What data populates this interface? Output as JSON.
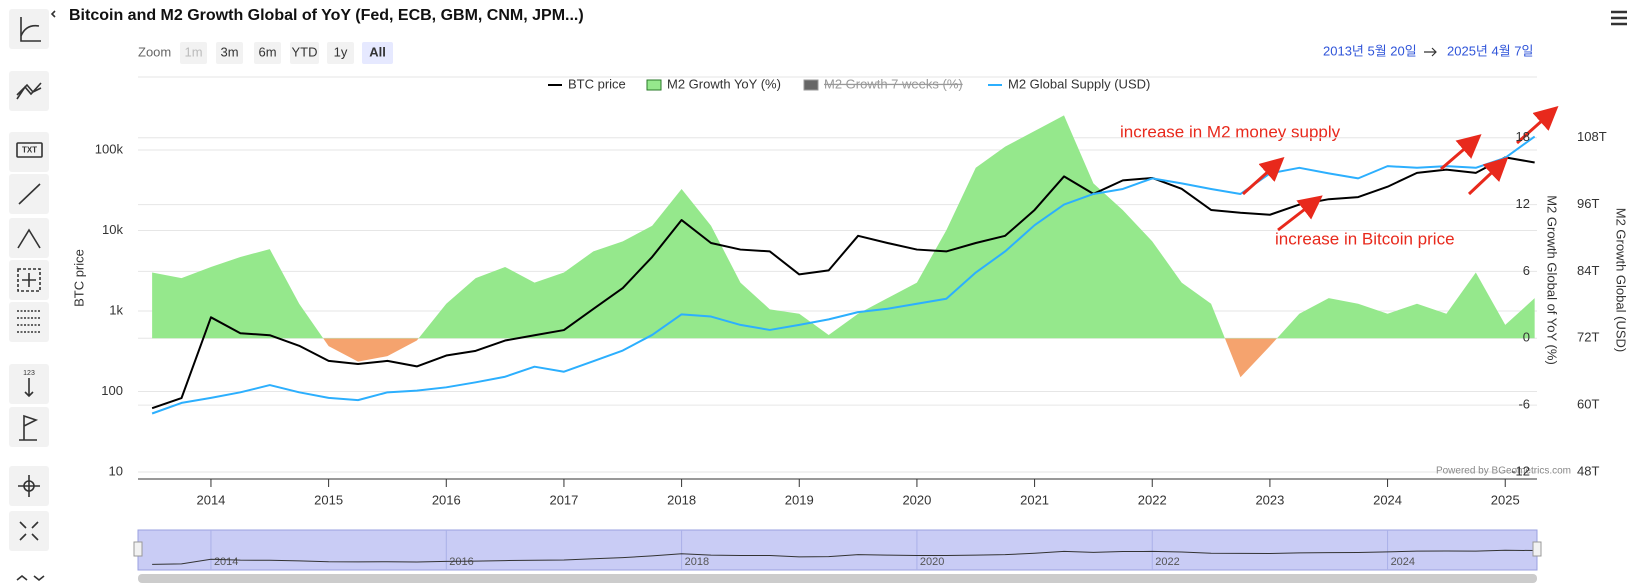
{
  "toolbar": [
    "TXT",
    "123"
  ],
  "zoom": {
    "label": "Zoom",
    "buttons": [
      "1m",
      "3m",
      "6m",
      "YTD",
      "1y",
      "All"
    ],
    "selected_index": 5,
    "disabled_index": 0
  },
  "date_range": {
    "from": "2013년 5월 20일",
    "to": "2025년 4월 7일"
  },
  "chart_data": {
    "type": "line",
    "title": "Bitcoin and M2 Growth Global of YoY (Fed, ECB, GBM, CNM, JPM...)",
    "x": [
      2013.5,
      2013.75,
      2014.0,
      2014.25,
      2014.5,
      2014.75,
      2015.0,
      2015.25,
      2015.5,
      2015.75,
      2016.0,
      2016.25,
      2016.5,
      2016.75,
      2017.0,
      2017.25,
      2017.5,
      2017.75,
      2018.0,
      2018.25,
      2018.5,
      2018.75,
      2019.0,
      2019.25,
      2019.5,
      2019.75,
      2020.0,
      2020.25,
      2020.5,
      2020.75,
      2021.0,
      2021.25,
      2021.5,
      2021.75,
      2022.0,
      2022.25,
      2022.5,
      2022.75,
      2023.0,
      2023.25,
      2023.5,
      2023.75,
      2024.0,
      2024.25,
      2024.5,
      2024.75,
      2025.0,
      2025.25
    ],
    "xlim": [
      2013.38,
      2025.27
    ],
    "xticks": [
      2014,
      2015,
      2016,
      2017,
      2018,
      2019,
      2020,
      2021,
      2022,
      2023,
      2024,
      2025
    ],
    "y_label": "BTC price",
    "yscale": "log",
    "ylim": [
      10,
      700000
    ],
    "yticks": [
      10,
      100,
      {
        "value": 1000,
        "label": "1k"
      },
      {
        "value": 10000,
        "label": "10k"
      },
      {
        "value": 100000,
        "label": "100k"
      }
    ],
    "y2_label": "M2 Growth Global of YoY (%)",
    "y2lim": [
      -12,
      23
    ],
    "y2ticks": [
      -12,
      -6,
      0,
      6,
      12,
      18
    ],
    "y3_label": "M2 Growth Global (USD)",
    "y3lim": [
      48,
      118
    ],
    "y3ticks": [
      {
        "value": 48,
        "label": "48T"
      },
      {
        "value": 60,
        "label": "60T"
      },
      {
        "value": 72,
        "label": "72T"
      },
      {
        "value": 84,
        "label": "84T"
      },
      {
        "value": 96,
        "label": "96T"
      },
      {
        "value": 108,
        "label": "108T"
      }
    ],
    "grid": true,
    "series": [
      {
        "name": "BTC price",
        "type": "line",
        "color": "#000000",
        "values": [
          62,
          83,
          835,
          530,
          500,
          370,
          240,
          220,
          240,
          205,
          280,
          320,
          430,
          500,
          580,
          1060,
          1930,
          4700,
          13500,
          7000,
          5800,
          5500,
          2850,
          3200,
          8600,
          7000,
          5800,
          5500,
          7000,
          8600,
          18000,
          47000,
          28500,
          42000,
          45000,
          33000,
          18000,
          16600,
          15700,
          21000,
          24500,
          26000,
          35000,
          52000,
          57000,
          52000,
          81000,
          70000
        ]
      },
      {
        "name": "M2 Growth YoY (%)",
        "type": "area",
        "axis": "y2",
        "color": "#95e88c",
        "negative_color": "#f5a36e",
        "values": [
          5.9,
          5.4,
          6.4,
          7.3,
          8.0,
          3.1,
          -0.7,
          -2.1,
          -1.6,
          -0.2,
          3.1,
          5.4,
          6.4,
          5.0,
          5.9,
          7.8,
          8.7,
          10.1,
          13.4,
          10.1,
          5.0,
          2.6,
          2.2,
          0.3,
          2.2,
          3.6,
          5.0,
          9.7,
          15.3,
          17.2,
          18.6,
          20.0,
          13.9,
          11.5,
          8.7,
          5.0,
          3.1,
          -3.5,
          -0.7,
          2.2,
          3.6,
          3.1,
          2.2,
          3.1,
          2.2,
          5.9,
          1.2,
          3.6
        ]
      },
      {
        "name": "M2 Growth 7 weeks (%)",
        "type": "line",
        "color": "#666666",
        "visible": false
      },
      {
        "name": "M2 Global Supply (USD)",
        "type": "line",
        "axis": "y3",
        "color": "#2caffe",
        "values": [
          58.5,
          60.4,
          61.3,
          62.3,
          63.6,
          62.3,
          61.3,
          60.9,
          62.3,
          62.6,
          63.2,
          64.1,
          65.1,
          66.9,
          66.0,
          67.9,
          69.8,
          72.6,
          76.3,
          75.9,
          74.4,
          73.5,
          74.4,
          75.4,
          76.7,
          77.3,
          78.2,
          79.1,
          83.8,
          87.6,
          92.3,
          96.0,
          97.9,
          98.8,
          100.7,
          99.8,
          98.8,
          97.9,
          101.6,
          102.6,
          101.6,
          100.7,
          102.9,
          102.6,
          102.9,
          102.6,
          104.4,
          108.2
        ]
      }
    ],
    "annotations": [
      {
        "text": "increase in M2 money supply",
        "color": "#e8291c"
      },
      {
        "text": "increase in Bitcoin price",
        "color": "#e8291c"
      }
    ],
    "credits": "Powered by BGeometrics.com",
    "navigator": {
      "xticks": [
        2014,
        2016,
        2018,
        2020,
        2022,
        2024
      ]
    }
  }
}
